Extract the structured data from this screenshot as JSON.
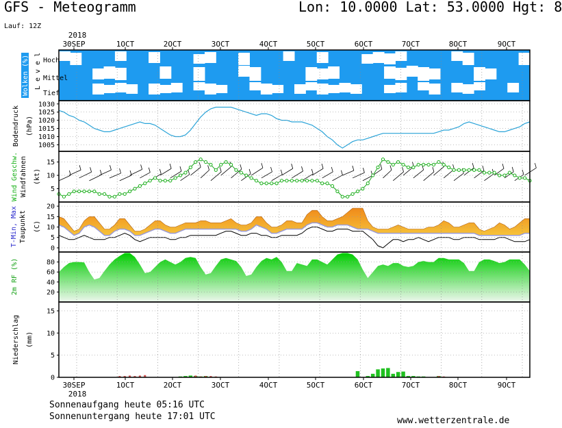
{
  "header": {
    "title": "GFS - Meteogramm",
    "coords": "Lon: 10.0000 Lat: 53.0000 Hgt: 8",
    "run": "Lauf: 12Z"
  },
  "footer": {
    "sunrise": "Sonnenaufgang heute 05:16 UTC",
    "sunset": "Sonnenuntergang heute 17:01 UTC",
    "site": "www.wetterzentrale.de"
  },
  "time_axis": {
    "year_label": "2018",
    "labels": [
      "30SEP",
      "1OCT",
      "2OCT",
      "3OCT",
      "4OCT",
      "5OCT",
      "6OCT",
      "7OCT",
      "8OCT",
      "9OCT"
    ]
  },
  "colors": {
    "cloud_bg": "#1e9bf0",
    "pressure_line": "#29a3d8",
    "wind_line": "#1fa01f",
    "wind_marker": "#16b016",
    "temp_fill_low": "#9b9bd6",
    "temp_fill_mid": "#f6c33a",
    "temp_fill_high": "#f08a1a",
    "dewpoint_line": "#000000",
    "rh_fill_top": "#00cc00",
    "rh_fill_bottom": "#eef7ee",
    "rain_convective": "#20c020",
    "rain_large": "#d05050"
  },
  "chart_data": [
    {
      "type": "heatmap",
      "panel": "clouds",
      "ylabel": "Wolken (%)",
      "ylabel2": "L e v e l",
      "levels": [
        "Hoch",
        "Mittel",
        "Tief"
      ],
      "cloud_high": [
        1,
        1,
        0,
        0,
        0,
        1,
        0,
        0,
        1,
        0,
        0,
        0,
        1,
        1,
        0,
        0,
        1,
        0,
        0,
        0,
        1,
        0,
        0,
        1,
        0,
        0,
        0,
        1,
        1,
        1,
        1,
        0,
        0,
        0,
        0,
        1,
        1,
        0,
        0,
        0,
        0,
        1
      ],
      "cloud_mid": [
        0,
        0,
        0,
        1,
        1,
        1,
        0,
        0,
        0,
        1,
        0,
        0,
        1,
        0,
        0,
        0,
        1,
        1,
        0,
        0,
        0,
        0,
        1,
        1,
        1,
        0,
        0,
        0,
        0,
        1,
        1,
        1,
        1,
        1,
        0,
        0,
        0,
        1,
        1,
        0,
        0,
        0
      ],
      "cloud_low": [
        0,
        0,
        0,
        1,
        1,
        1,
        1,
        0,
        1,
        1,
        1,
        0,
        1,
        1,
        1,
        0,
        0,
        1,
        1,
        1,
        0,
        1,
        1,
        1,
        1,
        1,
        1,
        0,
        0,
        1,
        1,
        0,
        1,
        1,
        0,
        1,
        1,
        1,
        0,
        0,
        1,
        0
      ]
    },
    {
      "type": "line",
      "panel": "pressure",
      "ylabel": "Bodendruck",
      "unit": "(hPa)",
      "ylim": [
        1001,
        1032
      ],
      "yticks": [
        1005,
        1010,
        1015,
        1020,
        1025,
        1030
      ],
      "x": [
        0,
        3,
        6,
        9,
        12,
        15,
        18,
        21,
        24,
        27,
        30,
        33,
        36,
        39,
        42,
        45,
        48,
        51,
        54,
        57,
        60,
        63,
        66,
        69,
        72,
        75,
        78,
        81,
        84,
        87,
        90,
        93,
        96,
        99,
        102,
        105,
        108,
        111,
        114,
        117,
        120,
        123,
        126,
        129,
        132,
        135,
        138,
        141,
        144,
        147,
        150,
        153,
        156,
        159,
        162,
        165,
        168,
        171,
        174,
        177,
        180,
        183,
        186,
        189,
        192,
        195,
        198,
        201,
        204,
        207,
        210,
        213,
        216,
        219,
        222,
        225,
        228,
        231,
        234,
        237,
        240,
        243,
        246,
        249,
        252,
        255,
        258,
        261,
        264,
        267,
        270,
        273,
        276,
        279
      ],
      "values": [
        1026,
        1025,
        1023,
        1022,
        1020,
        1019,
        1017,
        1015,
        1014,
        1013,
        1013,
        1014,
        1015,
        1016,
        1017,
        1018,
        1019,
        1018,
        1018,
        1017,
        1015,
        1013,
        1011,
        1010,
        1010,
        1011,
        1014,
        1018,
        1022,
        1025,
        1027,
        1028,
        1028,
        1028,
        1028,
        1027,
        1026,
        1025,
        1024,
        1023,
        1024,
        1024,
        1023,
        1021,
        1020,
        1020,
        1019,
        1019,
        1019,
        1018,
        1017,
        1015,
        1013,
        1010,
        1008,
        1005,
        1003,
        1005,
        1007,
        1008,
        1008,
        1009,
        1010,
        1011,
        1012,
        1012,
        1012,
        1012,
        1012,
        1012,
        1012,
        1012,
        1012,
        1012,
        1012,
        1013,
        1014,
        1014,
        1015,
        1016,
        1018,
        1019,
        1018,
        1017,
        1016,
        1015,
        1014,
        1013,
        1013,
        1014,
        1015,
        1016,
        1018,
        1019
      ]
    },
    {
      "type": "line",
      "panel": "wind",
      "ylabel": "Wind Geschw.",
      "ylabel2": "Windfahnen",
      "unit": "(kt)",
      "ylim": [
        0,
        19
      ],
      "yticks": [
        5,
        10,
        15
      ],
      "x": [
        0,
        3,
        6,
        9,
        12,
        15,
        18,
        21,
        24,
        27,
        30,
        33,
        36,
        39,
        42,
        45,
        48,
        51,
        54,
        57,
        60,
        63,
        66,
        69,
        72,
        75,
        78,
        81,
        84,
        87,
        90,
        93,
        96,
        99,
        102,
        105,
        108,
        111,
        114,
        117,
        120,
        123,
        126,
        129,
        132,
        135,
        138,
        141,
        144,
        147,
        150,
        153,
        156,
        159,
        162,
        165,
        168,
        171,
        174,
        177,
        180,
        183,
        186,
        189,
        192,
        195,
        198,
        201,
        204,
        207,
        210,
        213,
        216,
        219,
        222,
        225,
        228,
        231,
        234,
        237,
        240,
        243,
        246,
        249,
        252,
        255,
        258,
        261,
        264,
        267,
        270,
        273,
        276,
        279
      ],
      "values": [
        3,
        2,
        3,
        4,
        4,
        4,
        4,
        4,
        3,
        3,
        2,
        2,
        3,
        3,
        4,
        5,
        6,
        7,
        8,
        9,
        8,
        8,
        8,
        9,
        10,
        11,
        13,
        15,
        16,
        15,
        14,
        12,
        14,
        15,
        14,
        12,
        11,
        10,
        9,
        8,
        7,
        7,
        7,
        7,
        8,
        8,
        8,
        8,
        8,
        8,
        8,
        8,
        7,
        7,
        6,
        4,
        2,
        2,
        3,
        4,
        5,
        7,
        10,
        13,
        16,
        15,
        14,
        15,
        14,
        13,
        13,
        14,
        14,
        14,
        14,
        15,
        14,
        13,
        12,
        12,
        12,
        12,
        12,
        12,
        11,
        11,
        11,
        10,
        10,
        11,
        10,
        9,
        9,
        8
      ]
    },
    {
      "type": "area",
      "panel": "temperature",
      "ylabel": "T-Min, Max",
      "ylabel2": "Taupunkt",
      "unit": "(C)",
      "ylim": [
        -2,
        22
      ],
      "yticks": [
        0,
        5,
        10,
        15,
        20
      ],
      "x": [
        0,
        3,
        6,
        9,
        12,
        15,
        18,
        21,
        24,
        27,
        30,
        33,
        36,
        39,
        42,
        45,
        48,
        51,
        54,
        57,
        60,
        63,
        66,
        69,
        72,
        75,
        78,
        81,
        84,
        87,
        90,
        93,
        96,
        99,
        102,
        105,
        108,
        111,
        114,
        117,
        120,
        123,
        126,
        129,
        132,
        135,
        138,
        141,
        144,
        147,
        150,
        153,
        156,
        159,
        162,
        165,
        168,
        171,
        174,
        177,
        180,
        183,
        186,
        189,
        192,
        195,
        198,
        201,
        204,
        207,
        210,
        213,
        216,
        219,
        222,
        225,
        228,
        231,
        234,
        237,
        240,
        243,
        246,
        249,
        252,
        255,
        258,
        261,
        264,
        267,
        270,
        273,
        276,
        279
      ],
      "t_max": [
        15,
        14,
        11,
        8,
        9,
        13,
        15,
        15,
        12,
        9,
        9,
        11,
        14,
        14,
        11,
        8,
        8,
        9,
        11,
        13,
        13,
        11,
        10,
        10,
        11,
        12,
        12,
        12,
        13,
        13,
        12,
        12,
        12,
        13,
        14,
        12,
        11,
        11,
        12,
        15,
        15,
        12,
        10,
        10,
        11,
        13,
        13,
        12,
        12,
        16,
        18,
        18,
        15,
        13,
        13,
        14,
        15,
        17,
        19,
        19,
        19,
        13,
        10,
        9,
        9,
        9,
        10,
        11,
        10,
        9,
        9,
        9,
        9,
        10,
        10,
        11,
        13,
        12,
        10,
        10,
        11,
        12,
        12,
        9,
        8,
        9,
        10,
        12,
        11,
        9,
        10,
        12,
        14,
        14
      ],
      "t_min": [
        11,
        10,
        8,
        6,
        7,
        10,
        11,
        10,
        8,
        6,
        6,
        8,
        9,
        9,
        8,
        6,
        6,
        7,
        8,
        9,
        9,
        8,
        7,
        7,
        8,
        9,
        9,
        9,
        9,
        9,
        9,
        9,
        9,
        9,
        9,
        9,
        8,
        8,
        9,
        11,
        10,
        9,
        7,
        7,
        8,
        9,
        9,
        9,
        9,
        11,
        12,
        12,
        11,
        10,
        10,
        11,
        11,
        11,
        10,
        9,
        9,
        9,
        8,
        7,
        7,
        7,
        7,
        7,
        7,
        7,
        7,
        7,
        7,
        7,
        7,
        7,
        7,
        7,
        7,
        7,
        7,
        7,
        7,
        6,
        6,
        6,
        6,
        6,
        6,
        6,
        6,
        6,
        7,
        7
      ],
      "dewpoint": [
        6,
        5,
        4,
        4,
        5,
        6,
        5,
        4,
        4,
        4,
        5,
        5,
        6,
        7,
        6,
        4,
        3,
        4,
        5,
        5,
        5,
        5,
        4,
        4,
        5,
        5,
        6,
        6,
        6,
        6,
        6,
        6,
        7,
        8,
        8,
        7,
        6,
        6,
        7,
        7,
        6,
        6,
        5,
        5,
        6,
        6,
        6,
        6,
        7,
        9,
        10,
        10,
        9,
        8,
        8,
        9,
        9,
        9,
        8,
        8,
        8,
        6,
        4,
        1,
        0,
        2,
        4,
        4,
        3,
        4,
        4,
        5,
        4,
        3,
        4,
        5,
        5,
        5,
        4,
        4,
        5,
        5,
        5,
        4,
        4,
        4,
        4,
        5,
        5,
        4,
        3,
        3,
        3,
        4
      ]
    },
    {
      "type": "area",
      "panel": "humidity",
      "ylabel": "2m RF (%)",
      "ylim": [
        0,
        100
      ],
      "yticks": [
        20,
        40,
        60,
        80
      ],
      "x": [
        0,
        3,
        6,
        9,
        12,
        15,
        18,
        21,
        24,
        27,
        30,
        33,
        36,
        39,
        42,
        45,
        48,
        51,
        54,
        57,
        60,
        63,
        66,
        69,
        72,
        75,
        78,
        81,
        84,
        87,
        90,
        93,
        96,
        99,
        102,
        105,
        108,
        111,
        114,
        117,
        120,
        123,
        126,
        129,
        132,
        135,
        138,
        141,
        144,
        147,
        150,
        153,
        156,
        159,
        162,
        165,
        168,
        171,
        174,
        177,
        180,
        183,
        186,
        189,
        192,
        195,
        198,
        201,
        204,
        207,
        210,
        213,
        216,
        219,
        222,
        225,
        228,
        231,
        234,
        237,
        240,
        243,
        246,
        249,
        252,
        255,
        258,
        261,
        264,
        267,
        270,
        273,
        276,
        279
      ],
      "values": [
        60,
        70,
        78,
        80,
        80,
        79,
        60,
        45,
        48,
        62,
        75,
        85,
        92,
        98,
        98,
        90,
        75,
        58,
        60,
        70,
        80,
        85,
        80,
        75,
        80,
        88,
        90,
        88,
        70,
        55,
        58,
        72,
        85,
        88,
        85,
        82,
        70,
        52,
        55,
        70,
        82,
        88,
        85,
        90,
        80,
        62,
        62,
        78,
        75,
        72,
        85,
        85,
        80,
        75,
        85,
        95,
        98,
        98,
        95,
        85,
        65,
        48,
        60,
        72,
        75,
        72,
        78,
        78,
        72,
        70,
        72,
        80,
        82,
        80,
        80,
        88,
        88,
        85,
        85,
        85,
        78,
        62,
        62,
        80,
        85,
        85,
        82,
        78,
        80,
        85,
        85,
        85,
        75,
        62
      ]
    },
    {
      "type": "bar",
      "panel": "precipitation",
      "ylabel": "Niederschlag",
      "unit": "(mm)",
      "ylim": [
        0,
        17
      ],
      "yticks": [
        0,
        5,
        10,
        15
      ],
      "bars": [
        {
          "x": 36,
          "conv": 0.1,
          "large": 0.3
        },
        {
          "x": 39,
          "conv": 0.1,
          "large": 0.3
        },
        {
          "x": 42,
          "conv": 0.1,
          "large": 0.4
        },
        {
          "x": 45,
          "conv": 0.1,
          "large": 0.3
        },
        {
          "x": 48,
          "conv": 0.1,
          "large": 0.4
        },
        {
          "x": 51,
          "conv": 0.1,
          "large": 0.5
        },
        {
          "x": 72,
          "conv": 0.2,
          "large": 0.1
        },
        {
          "x": 75,
          "conv": 0.3,
          "large": 0.1
        },
        {
          "x": 78,
          "conv": 0.4,
          "large": 0.1
        },
        {
          "x": 81,
          "conv": 0.3,
          "large": 0.4
        },
        {
          "x": 84,
          "conv": 0.2,
          "large": 0.2
        },
        {
          "x": 87,
          "conv": 0.3,
          "large": 0.3
        },
        {
          "x": 90,
          "conv": 0.1,
          "large": 0.3
        },
        {
          "x": 93,
          "conv": 0.1,
          "large": 0.2
        },
        {
          "x": 177,
          "conv": 1.4,
          "large": 0
        },
        {
          "x": 183,
          "conv": 0.3,
          "large": 0
        },
        {
          "x": 186,
          "conv": 0.8,
          "large": 0
        },
        {
          "x": 189,
          "conv": 1.8,
          "large": 0
        },
        {
          "x": 192,
          "conv": 2.0,
          "large": 0
        },
        {
          "x": 195,
          "conv": 2.1,
          "large": 0
        },
        {
          "x": 198,
          "conv": 0.8,
          "large": 0
        },
        {
          "x": 201,
          "conv": 1.2,
          "large": 0
        },
        {
          "x": 204,
          "conv": 1.3,
          "large": 0
        },
        {
          "x": 207,
          "conv": 0.3,
          "large": 0
        },
        {
          "x": 210,
          "conv": 0.3,
          "large": 0
        },
        {
          "x": 213,
          "conv": 0.2,
          "large": 0
        },
        {
          "x": 216,
          "conv": 0.2,
          "large": 0
        },
        {
          "x": 225,
          "conv": 0.3,
          "large": 0.3
        },
        {
          "x": 228,
          "conv": 0.1,
          "large": 0.2
        }
      ]
    }
  ]
}
